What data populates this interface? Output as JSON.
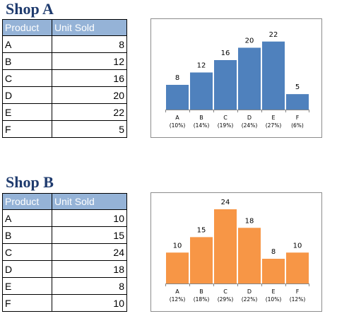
{
  "shops": [
    {
      "title": "Shop A",
      "table": {
        "headers": [
          "Product",
          "Unit Sold"
        ],
        "rows": [
          {
            "product": "A",
            "units": "8"
          },
          {
            "product": "B",
            "units": "12"
          },
          {
            "product": "C",
            "units": "16"
          },
          {
            "product": "D",
            "units": "20"
          },
          {
            "product": "E",
            "units": "22"
          },
          {
            "product": "F",
            "units": "5"
          }
        ]
      }
    },
    {
      "title": "Shop B",
      "table": {
        "headers": [
          "Product",
          "Unit Sold"
        ],
        "rows": [
          {
            "product": "A",
            "units": "10"
          },
          {
            "product": "B",
            "units": "15"
          },
          {
            "product": "C",
            "units": "24"
          },
          {
            "product": "D",
            "units": "18"
          },
          {
            "product": "E",
            "units": "8"
          },
          {
            "product": "F",
            "units": "10"
          }
        ]
      }
    }
  ],
  "chart_data": [
    {
      "type": "bar",
      "categories": [
        "A",
        "B",
        "C",
        "D",
        "E",
        "F"
      ],
      "category_percent_labels": [
        "(10%)",
        "(14%)",
        "(19%)",
        "(24%)",
        "(27%)",
        "(6%)"
      ],
      "values": [
        8,
        12,
        16,
        20,
        22,
        5
      ],
      "data_labels": true,
      "bar_color": "#4f81bd",
      "ylim": [
        0,
        24
      ],
      "grid": false,
      "legend": "none",
      "title": "",
      "xlabel": "",
      "ylabel": ""
    },
    {
      "type": "bar",
      "categories": [
        "A",
        "B",
        "C",
        "D",
        "E",
        "F"
      ],
      "category_percent_labels": [
        "(12%)",
        "(18%)",
        "(29%)",
        "(22%)",
        "(10%)",
        "(12%)"
      ],
      "values": [
        10,
        15,
        24,
        18,
        8,
        10
      ],
      "data_labels": true,
      "bar_color": "#f79646",
      "ylim": [
        0,
        24
      ],
      "grid": false,
      "legend": "none",
      "title": "",
      "xlabel": "",
      "ylabel": ""
    }
  ]
}
